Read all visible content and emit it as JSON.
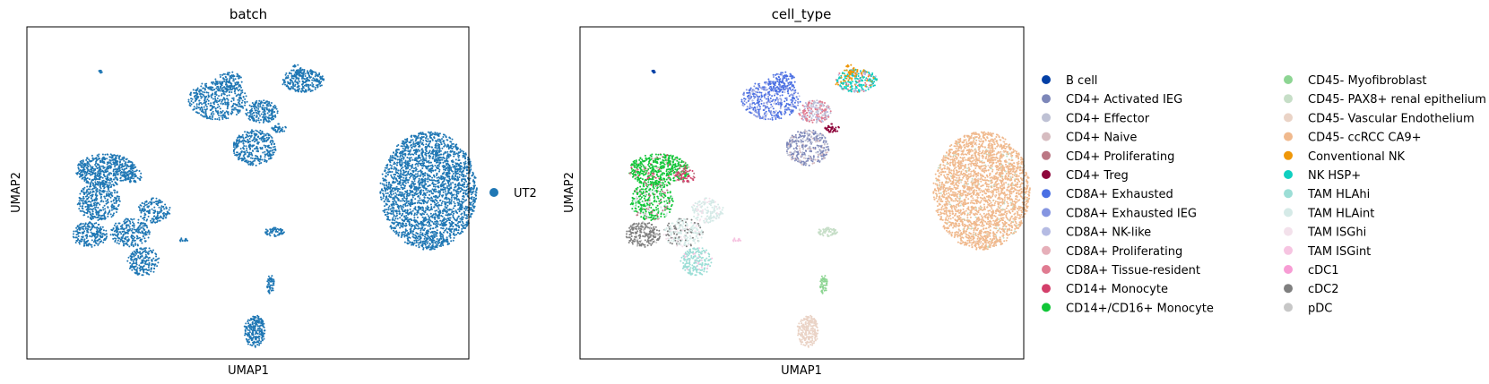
{
  "chart_data": [
    {
      "type": "scatter",
      "title": "batch",
      "xlabel": "UMAP1",
      "ylabel": "UMAP2",
      "grid": false,
      "legend": {
        "placement": "right",
        "entries": [
          {
            "name": "UT2",
            "color": "#1f77b4"
          }
        ]
      }
    },
    {
      "type": "scatter",
      "title": "cell_type",
      "xlabel": "UMAP1",
      "ylabel": "UMAP2",
      "grid": false,
      "legend": {
        "placement": "right",
        "columns": 2,
        "entries": [
          {
            "name": "B cell",
            "color": "#023fa5"
          },
          {
            "name": "CD4+ Activated IEG",
            "color": "#7d87b9"
          },
          {
            "name": "CD4+ Effector",
            "color": "#bec1d4"
          },
          {
            "name": "CD4+ Naive",
            "color": "#d6bcc0"
          },
          {
            "name": "CD4+ Proliferating",
            "color": "#bb7784"
          },
          {
            "name": "CD4+ Treg",
            "color": "#8e063b"
          },
          {
            "name": "CD8A+ Exhausted",
            "color": "#4a6fe3"
          },
          {
            "name": "CD8A+ Exhausted IEG",
            "color": "#8595e1"
          },
          {
            "name": "CD8A+ NK-like",
            "color": "#b5bbe3"
          },
          {
            "name": "CD8A+ Proliferating",
            "color": "#e6afb9"
          },
          {
            "name": "CD8A+ Tissue-resident",
            "color": "#e07b91"
          },
          {
            "name": "CD14+ Monocyte",
            "color": "#d33f6a"
          },
          {
            "name": "CD14+/CD16+ Monocyte",
            "color": "#11c638"
          },
          {
            "name": "CD45- Myofibroblast",
            "color": "#8dd593"
          },
          {
            "name": "CD45- PAX8+ renal epithelium",
            "color": "#c6dec7"
          },
          {
            "name": "CD45- Vascular Endothelium",
            "color": "#ead3c6"
          },
          {
            "name": "CD45- ccRCC CA9+",
            "color": "#f0b98d"
          },
          {
            "name": "Conventional NK",
            "color": "#ef9708"
          },
          {
            "name": "NK HSP+",
            "color": "#0fcfc0"
          },
          {
            "name": "TAM HLAhi",
            "color": "#9cded6"
          },
          {
            "name": "TAM HLAint",
            "color": "#d5eae7"
          },
          {
            "name": "TAM ISGhi",
            "color": "#f3e1eb"
          },
          {
            "name": "TAM ISGint",
            "color": "#f6c4e1"
          },
          {
            "name": "cDC1",
            "color": "#f79cd4"
          },
          {
            "name": "cDC2",
            "color": "#7f7f7f"
          },
          {
            "name": "pDC",
            "color": "#c7c7c7"
          }
        ]
      }
    }
  ]
}
